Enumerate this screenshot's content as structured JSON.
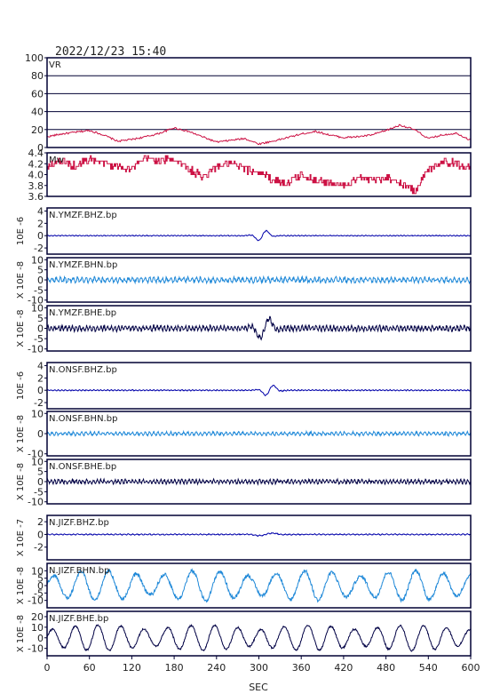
{
  "title": "2022/12/23  15:40",
  "colors": {
    "frame": "#000033",
    "vr": "#cc1144",
    "mw": "#cc1144",
    "bhz": "#0000aa",
    "bhn": "#1e88d8",
    "bhe": "#000044"
  },
  "chart_data": {
    "type": "line",
    "xlabel": "SEC",
    "xlim": [
      0,
      600
    ],
    "xticks": [
      "0",
      "60",
      "120",
      "180",
      "240",
      "300",
      "360",
      "420",
      "480",
      "540",
      "600"
    ],
    "panels": [
      {
        "id": "vr",
        "label": "VR",
        "ylabel": "",
        "ylim": [
          0,
          100
        ],
        "yticks": [
          "100",
          "80",
          "60",
          "40",
          "20",
          "0"
        ],
        "grid": true,
        "color_key": "vr",
        "series": {
          "x": [
            0,
            20,
            40,
            60,
            80,
            100,
            120,
            140,
            160,
            180,
            200,
            220,
            240,
            260,
            280,
            300,
            320,
            340,
            360,
            380,
            400,
            420,
            440,
            460,
            480,
            500,
            520,
            540,
            560,
            580,
            600
          ],
          "y": [
            12,
            15,
            17,
            19,
            14,
            7,
            9,
            12,
            16,
            22,
            18,
            12,
            6,
            8,
            10,
            4,
            7,
            11,
            15,
            18,
            14,
            11,
            12,
            14,
            19,
            25,
            20,
            10,
            14,
            16,
            8
          ]
        }
      },
      {
        "id": "mw",
        "label": "Mw",
        "ylabel": "",
        "ylim": [
          3.6,
          4.4
        ],
        "yticks": [
          "4.4",
          "4.2",
          "4.0",
          "3.8",
          "3.6"
        ],
        "grid": false,
        "color_key": "mw",
        "series": {
          "x": [
            0,
            20,
            40,
            60,
            80,
            100,
            120,
            140,
            160,
            180,
            200,
            220,
            240,
            260,
            280,
            300,
            320,
            340,
            360,
            380,
            400,
            420,
            440,
            460,
            480,
            500,
            520,
            540,
            560,
            580,
            600
          ],
          "y": [
            4.15,
            4.25,
            4.15,
            4.3,
            4.2,
            4.15,
            4.1,
            4.3,
            4.25,
            4.3,
            4.1,
            3.95,
            4.15,
            4.2,
            4.1,
            4.05,
            3.9,
            3.85,
            4.0,
            3.9,
            3.85,
            3.8,
            3.95,
            3.9,
            3.95,
            3.85,
            3.7,
            4.1,
            4.25,
            4.2,
            4.15
          ]
        }
      },
      {
        "id": "ymzf_bhz",
        "label": "N.YMZF.BHZ.bp",
        "ylabel": "10E -6",
        "ylim": [
          -3,
          4.5
        ],
        "yticks": [
          "4",
          "2",
          "0",
          "-2"
        ],
        "grid": false,
        "color_key": "bhz",
        "series": {
          "kind": "seismogram",
          "noise": 0.08,
          "period": 5,
          "events": [
            {
              "t": 305,
              "amp": 1.0,
              "width": 12
            }
          ]
        }
      },
      {
        "id": "ymzf_bhn",
        "label": "N.YMZF.BHN.bp",
        "ylabel": "X 10E -8",
        "ylim": [
          -11,
          11
        ],
        "yticks": [
          "10",
          "5",
          "0",
          "-5",
          "-10"
        ],
        "grid": false,
        "color_key": "bhn",
        "series": {
          "kind": "seismogram",
          "noise": 1.5,
          "period": 6,
          "events": []
        }
      },
      {
        "id": "ymzf_bhe",
        "label": "N.YMZF.BHE.bp",
        "ylabel": "X 10E -8",
        "ylim": [
          -11,
          11
        ],
        "yticks": [
          "10",
          "5",
          "0",
          "-5",
          "-10"
        ],
        "grid": false,
        "color_key": "bhe",
        "series": {
          "kind": "seismogram",
          "noise": 1.5,
          "period": 5,
          "events": [
            {
              "t": 308,
              "amp": 6.0,
              "width": 14
            }
          ]
        }
      },
      {
        "id": "onsf_bhz",
        "label": "N.ONSF.BHZ.bp",
        "ylabel": "10E -6",
        "ylim": [
          -3,
          4.5
        ],
        "yticks": [
          "4",
          "2",
          "0",
          "-2"
        ],
        "grid": false,
        "color_key": "bhz",
        "series": {
          "kind": "seismogram",
          "noise": 0.1,
          "period": 5,
          "events": [
            {
              "t": 315,
              "amp": 1.0,
              "width": 12
            }
          ]
        }
      },
      {
        "id": "onsf_bhn",
        "label": "N.ONSF.BHN.bp",
        "ylabel": "X 10E -8",
        "ylim": [
          -11,
          11
        ],
        "yticks": [
          "10",
          "0",
          "-10"
        ],
        "grid": false,
        "color_key": "bhn",
        "series": {
          "kind": "seismogram",
          "noise": 1.0,
          "period": 6,
          "events": []
        }
      },
      {
        "id": "onsf_bhe",
        "label": "N.ONSF.BHE.bp",
        "ylabel": "X 10E -8",
        "ylim": [
          -11,
          11
        ],
        "yticks": [
          "10",
          "5",
          "0",
          "-5",
          "-10"
        ],
        "grid": false,
        "color_key": "bhe",
        "series": {
          "kind": "seismogram",
          "noise": 1.2,
          "period": 5,
          "events": []
        }
      },
      {
        "id": "jizf_bhz",
        "label": "N.JIZF.BHZ.bp",
        "ylabel": "X 10E -7",
        "ylim": [
          -4,
          3
        ],
        "yticks": [
          "2",
          "0",
          "-2"
        ],
        "grid": false,
        "color_key": "bhz",
        "series": {
          "kind": "seismogram",
          "noise": 0.1,
          "period": 6,
          "events": [
            {
              "t": 310,
              "amp": 0.25,
              "width": 20
            }
          ]
        }
      },
      {
        "id": "jizf_bhn",
        "label": "N.JIZF.BHN.bp",
        "ylabel": "X 10E -8",
        "ylim": [
          -15,
          15
        ],
        "yticks": [
          "10",
          "5",
          "0",
          "-5",
          "-10"
        ],
        "grid": false,
        "color_key": "bhn",
        "series": {
          "kind": "wave",
          "amp": 10,
          "period": 40,
          "noise": 1.2
        }
      },
      {
        "id": "jizf_bhe",
        "label": "N.JIZF.BHE.bp",
        "ylabel": "X 10E -8",
        "ylim": [
          -17,
          25
        ],
        "yticks": [
          "20",
          "10",
          "0",
          "-10"
        ],
        "grid": false,
        "color_key": "bhe",
        "series": {
          "kind": "wave",
          "amp": 12,
          "period": 33,
          "noise": 0.8
        }
      }
    ]
  }
}
